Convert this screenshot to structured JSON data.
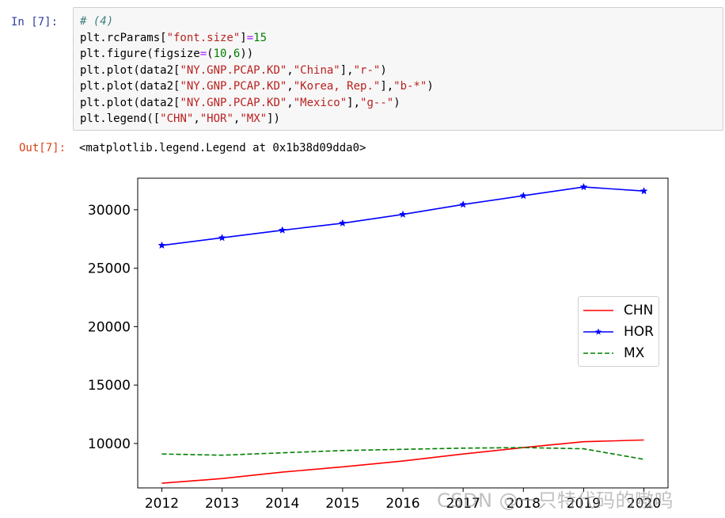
{
  "input_cell": {
    "prompt": "In  [7]:",
    "lines": [
      [
        {
          "t": "# (4)",
          "c": "c-comment"
        }
      ],
      [
        {
          "t": "plt.rcParams["
        },
        {
          "t": "\"font.size\"",
          "c": "c-str"
        },
        {
          "t": "]"
        },
        {
          "t": "=",
          "c": "c-op"
        },
        {
          "t": "15",
          "c": "c-num"
        }
      ],
      [
        {
          "t": "plt.figure(figsize"
        },
        {
          "t": "=",
          "c": "c-op"
        },
        {
          "t": "("
        },
        {
          "t": "10",
          "c": "c-num"
        },
        {
          "t": ","
        },
        {
          "t": "6",
          "c": "c-num"
        },
        {
          "t": "))"
        }
      ],
      [
        {
          "t": "plt.plot(data2["
        },
        {
          "t": "\"NY.GNP.PCAP.KD\"",
          "c": "c-str"
        },
        {
          "t": ","
        },
        {
          "t": "\"China\"",
          "c": "c-str"
        },
        {
          "t": "],"
        },
        {
          "t": "\"r-\"",
          "c": "c-str"
        },
        {
          "t": ")"
        }
      ],
      [
        {
          "t": "plt.plot(data2["
        },
        {
          "t": "\"NY.GNP.PCAP.KD\"",
          "c": "c-str"
        },
        {
          "t": ","
        },
        {
          "t": "\"Korea, Rep.\"",
          "c": "c-str"
        },
        {
          "t": "],"
        },
        {
          "t": "\"b-*\"",
          "c": "c-str"
        },
        {
          "t": ")"
        }
      ],
      [
        {
          "t": "plt.plot(data2["
        },
        {
          "t": "\"NY.GNP.PCAP.KD\"",
          "c": "c-str"
        },
        {
          "t": ","
        },
        {
          "t": "\"Mexico\"",
          "c": "c-str"
        },
        {
          "t": "],"
        },
        {
          "t": "\"g--\"",
          "c": "c-str"
        },
        {
          "t": ")"
        }
      ],
      [
        {
          "t": "plt.legend(["
        },
        {
          "t": "\"CHN\"",
          "c": "c-str"
        },
        {
          "t": ","
        },
        {
          "t": "\"HOR\"",
          "c": "c-str"
        },
        {
          "t": ","
        },
        {
          "t": "\"MX\"",
          "c": "c-str"
        },
        {
          "t": "])"
        }
      ]
    ]
  },
  "output_cell": {
    "prompt": "Out[7]:",
    "text": "<matplotlib.legend.Legend at 0x1b38d09dda0>"
  },
  "watermark": "CSDN @一只特代码的嗷呜",
  "chart_data": {
    "type": "line",
    "x": [
      2012,
      2013,
      2014,
      2015,
      2016,
      2017,
      2018,
      2019,
      2020
    ],
    "xticks": [
      "2012",
      "2013",
      "2014",
      "2015",
      "2016",
      "2017",
      "2018",
      "2019",
      "2020"
    ],
    "yticks": [
      "10000",
      "15000",
      "20000",
      "25000",
      "30000"
    ],
    "ylim": [
      6200,
      32700
    ],
    "xlim": [
      2011.6,
      2020.4
    ],
    "grid": false,
    "legend_position": "center-right",
    "series": [
      {
        "name": "CHN",
        "color": "#ff0000",
        "style": "solid",
        "marker": "none",
        "values": [
          6600,
          7000,
          7550,
          8000,
          8500,
          9100,
          9650,
          10150,
          10300
        ]
      },
      {
        "name": "HOR",
        "color": "#0000ff",
        "style": "solid",
        "marker": "star",
        "values": [
          26950,
          27600,
          28250,
          28850,
          29600,
          30450,
          31200,
          31950,
          31600
        ]
      },
      {
        "name": "MX",
        "color": "#008000",
        "style": "dashed",
        "marker": "none",
        "values": [
          9100,
          9000,
          9200,
          9400,
          9500,
          9600,
          9650,
          9550,
          8650
        ]
      }
    ]
  }
}
